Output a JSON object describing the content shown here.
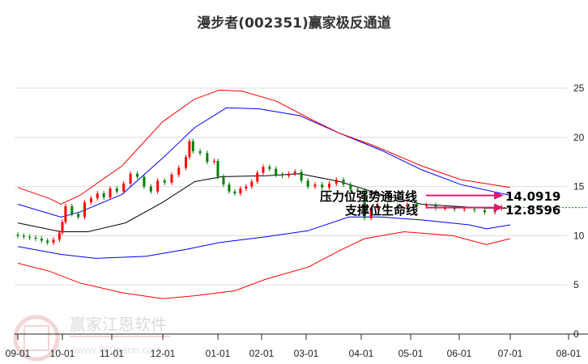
{
  "chart_data": {
    "type": "candlestick",
    "title": "漫步者(002351)赢家极反通道",
    "ylim": [
      0,
      25
    ],
    "yticks": [
      0,
      5,
      10,
      15,
      20,
      25
    ],
    "grid": true,
    "xticks": [
      {
        "label": "09-01",
        "day": 0
      },
      {
        "label": "10-01",
        "day": 30
      },
      {
        "label": "11-01",
        "day": 61
      },
      {
        "label": "12-01",
        "day": 91
      },
      {
        "label": "01-01",
        "day": 122
      },
      {
        "label": "02-01",
        "day": 153
      },
      {
        "label": "03-01",
        "day": 181
      },
      {
        "label": "04-01",
        "day": 212
      },
      {
        "label": "05-01",
        "day": 242
      },
      {
        "label": "06-01",
        "day": 273
      },
      {
        "label": "07-01",
        "day": 303
      },
      {
        "label": "08-01",
        "day": 334
      }
    ],
    "candles": {
      "first_open": 10.1,
      "days": [
        0,
        4,
        8,
        12,
        16,
        20,
        24,
        28,
        30,
        32,
        36,
        40,
        44,
        48,
        52,
        56,
        60,
        64,
        68,
        72,
        76,
        80,
        84,
        88,
        92,
        96,
        100,
        104,
        106,
        108,
        112,
        116,
        120,
        122,
        126,
        130,
        134,
        138,
        142,
        146,
        150,
        154,
        158,
        162,
        166,
        170,
        174,
        178,
        182,
        186,
        190,
        194,
        198,
        202,
        206,
        210,
        214,
        218,
        222,
        228,
        234,
        240,
        246,
        252,
        258,
        264,
        270,
        276,
        282,
        288,
        294,
        298
      ],
      "close": [
        10.0,
        9.9,
        9.8,
        9.7,
        9.5,
        9.3,
        9.6,
        10.3,
        11.4,
        13.0,
        12.2,
        11.9,
        13.4,
        13.8,
        14.3,
        13.9,
        14.8,
        14.5,
        15.3,
        16.3,
        16.0,
        15.0,
        14.5,
        15.6,
        15.4,
        16.2,
        16.9,
        18.0,
        19.6,
        18.6,
        18.4,
        17.5,
        17.6,
        16.0,
        15.2,
        14.5,
        14.3,
        14.8,
        15.0,
        15.5,
        16.4,
        17.0,
        16.8,
        16.2,
        16.1,
        16.3,
        16.5,
        15.6,
        15.0,
        15.2,
        14.9,
        15.3,
        15.7,
        15.2,
        14.7,
        14.6,
        11.8,
        12.8,
        13.1,
        13.0,
        12.9,
        13.2,
        13.0,
        13.1,
        12.8,
        12.8,
        12.7,
        12.7,
        12.6,
        12.4,
        12.8,
        12.9
      ]
    },
    "series": [
      {
        "name": "mid",
        "color": "#000000",
        "days": [
          0,
          29,
          46,
          69,
          91,
          109,
          125,
          156,
          177,
          200,
          224,
          249,
          269,
          289,
          301
        ],
        "values": [
          11.3,
          10.4,
          10.4,
          11.3,
          13.4,
          15.5,
          16.0,
          16.1,
          16.3,
          15.5,
          14.2,
          13.2,
          13.0,
          12.8,
          12.8
        ]
      },
      {
        "name": "upper-blue",
        "color": "#0000ff",
        "days": [
          0,
          29,
          41,
          67,
          91,
          109,
          128,
          151,
          177,
          200,
          224,
          249,
          274,
          303
        ],
        "values": [
          13.2,
          11.9,
          12.4,
          14.2,
          17.9,
          21.0,
          23.0,
          22.9,
          22.2,
          20.4,
          18.7,
          16.7,
          15.2,
          14.1
        ]
      },
      {
        "name": "lower-blue",
        "color": "#0000ff",
        "days": [
          0,
          29,
          51,
          81,
          104,
          123,
          156,
          182,
          205,
          224,
          249,
          279,
          289,
          303
        ],
        "values": [
          8.9,
          8.1,
          7.7,
          7.9,
          8.6,
          9.3,
          9.9,
          10.5,
          11.9,
          11.9,
          11.6,
          11.1,
          10.7,
          11.1
        ]
      },
      {
        "name": "upper-red",
        "color": "#ff0000",
        "days": [
          0,
          21,
          29,
          41,
          67,
          91,
          109,
          123,
          139,
          162,
          182,
          200,
          219,
          249,
          274,
          303
        ],
        "values": [
          14.9,
          13.8,
          13.2,
          14.1,
          17.1,
          21.6,
          23.9,
          24.8,
          24.7,
          23.7,
          22.0,
          20.4,
          19.2,
          17.1,
          15.7,
          14.9
        ]
      },
      {
        "name": "lower-red",
        "color": "#ff0000",
        "days": [
          0,
          21,
          41,
          67,
          91,
          109,
          134,
          156,
          182,
          200,
          214,
          238,
          269,
          289,
          303
        ],
        "values": [
          7.2,
          6.4,
          5.2,
          4.2,
          3.6,
          3.9,
          4.4,
          5.6,
          6.8,
          8.5,
          9.7,
          10.4,
          10.0,
          9.1,
          9.7
        ]
      }
    ],
    "annotations": [
      {
        "label": "压力位强势通道线",
        "value": "14.0919",
        "level": 14.0919
      },
      {
        "label": "支撑位生命线",
        "value": "12.8596",
        "level": 12.8596
      }
    ],
    "colors": {
      "up": "#ff0000",
      "down": "#008000",
      "arrow": "#e0186c",
      "support_line": "#008000",
      "grid": "#dddddd"
    }
  },
  "watermark": {
    "name": "赢家江恩软件",
    "url": "www.360gann.com",
    "seal": "江恩赢家"
  }
}
